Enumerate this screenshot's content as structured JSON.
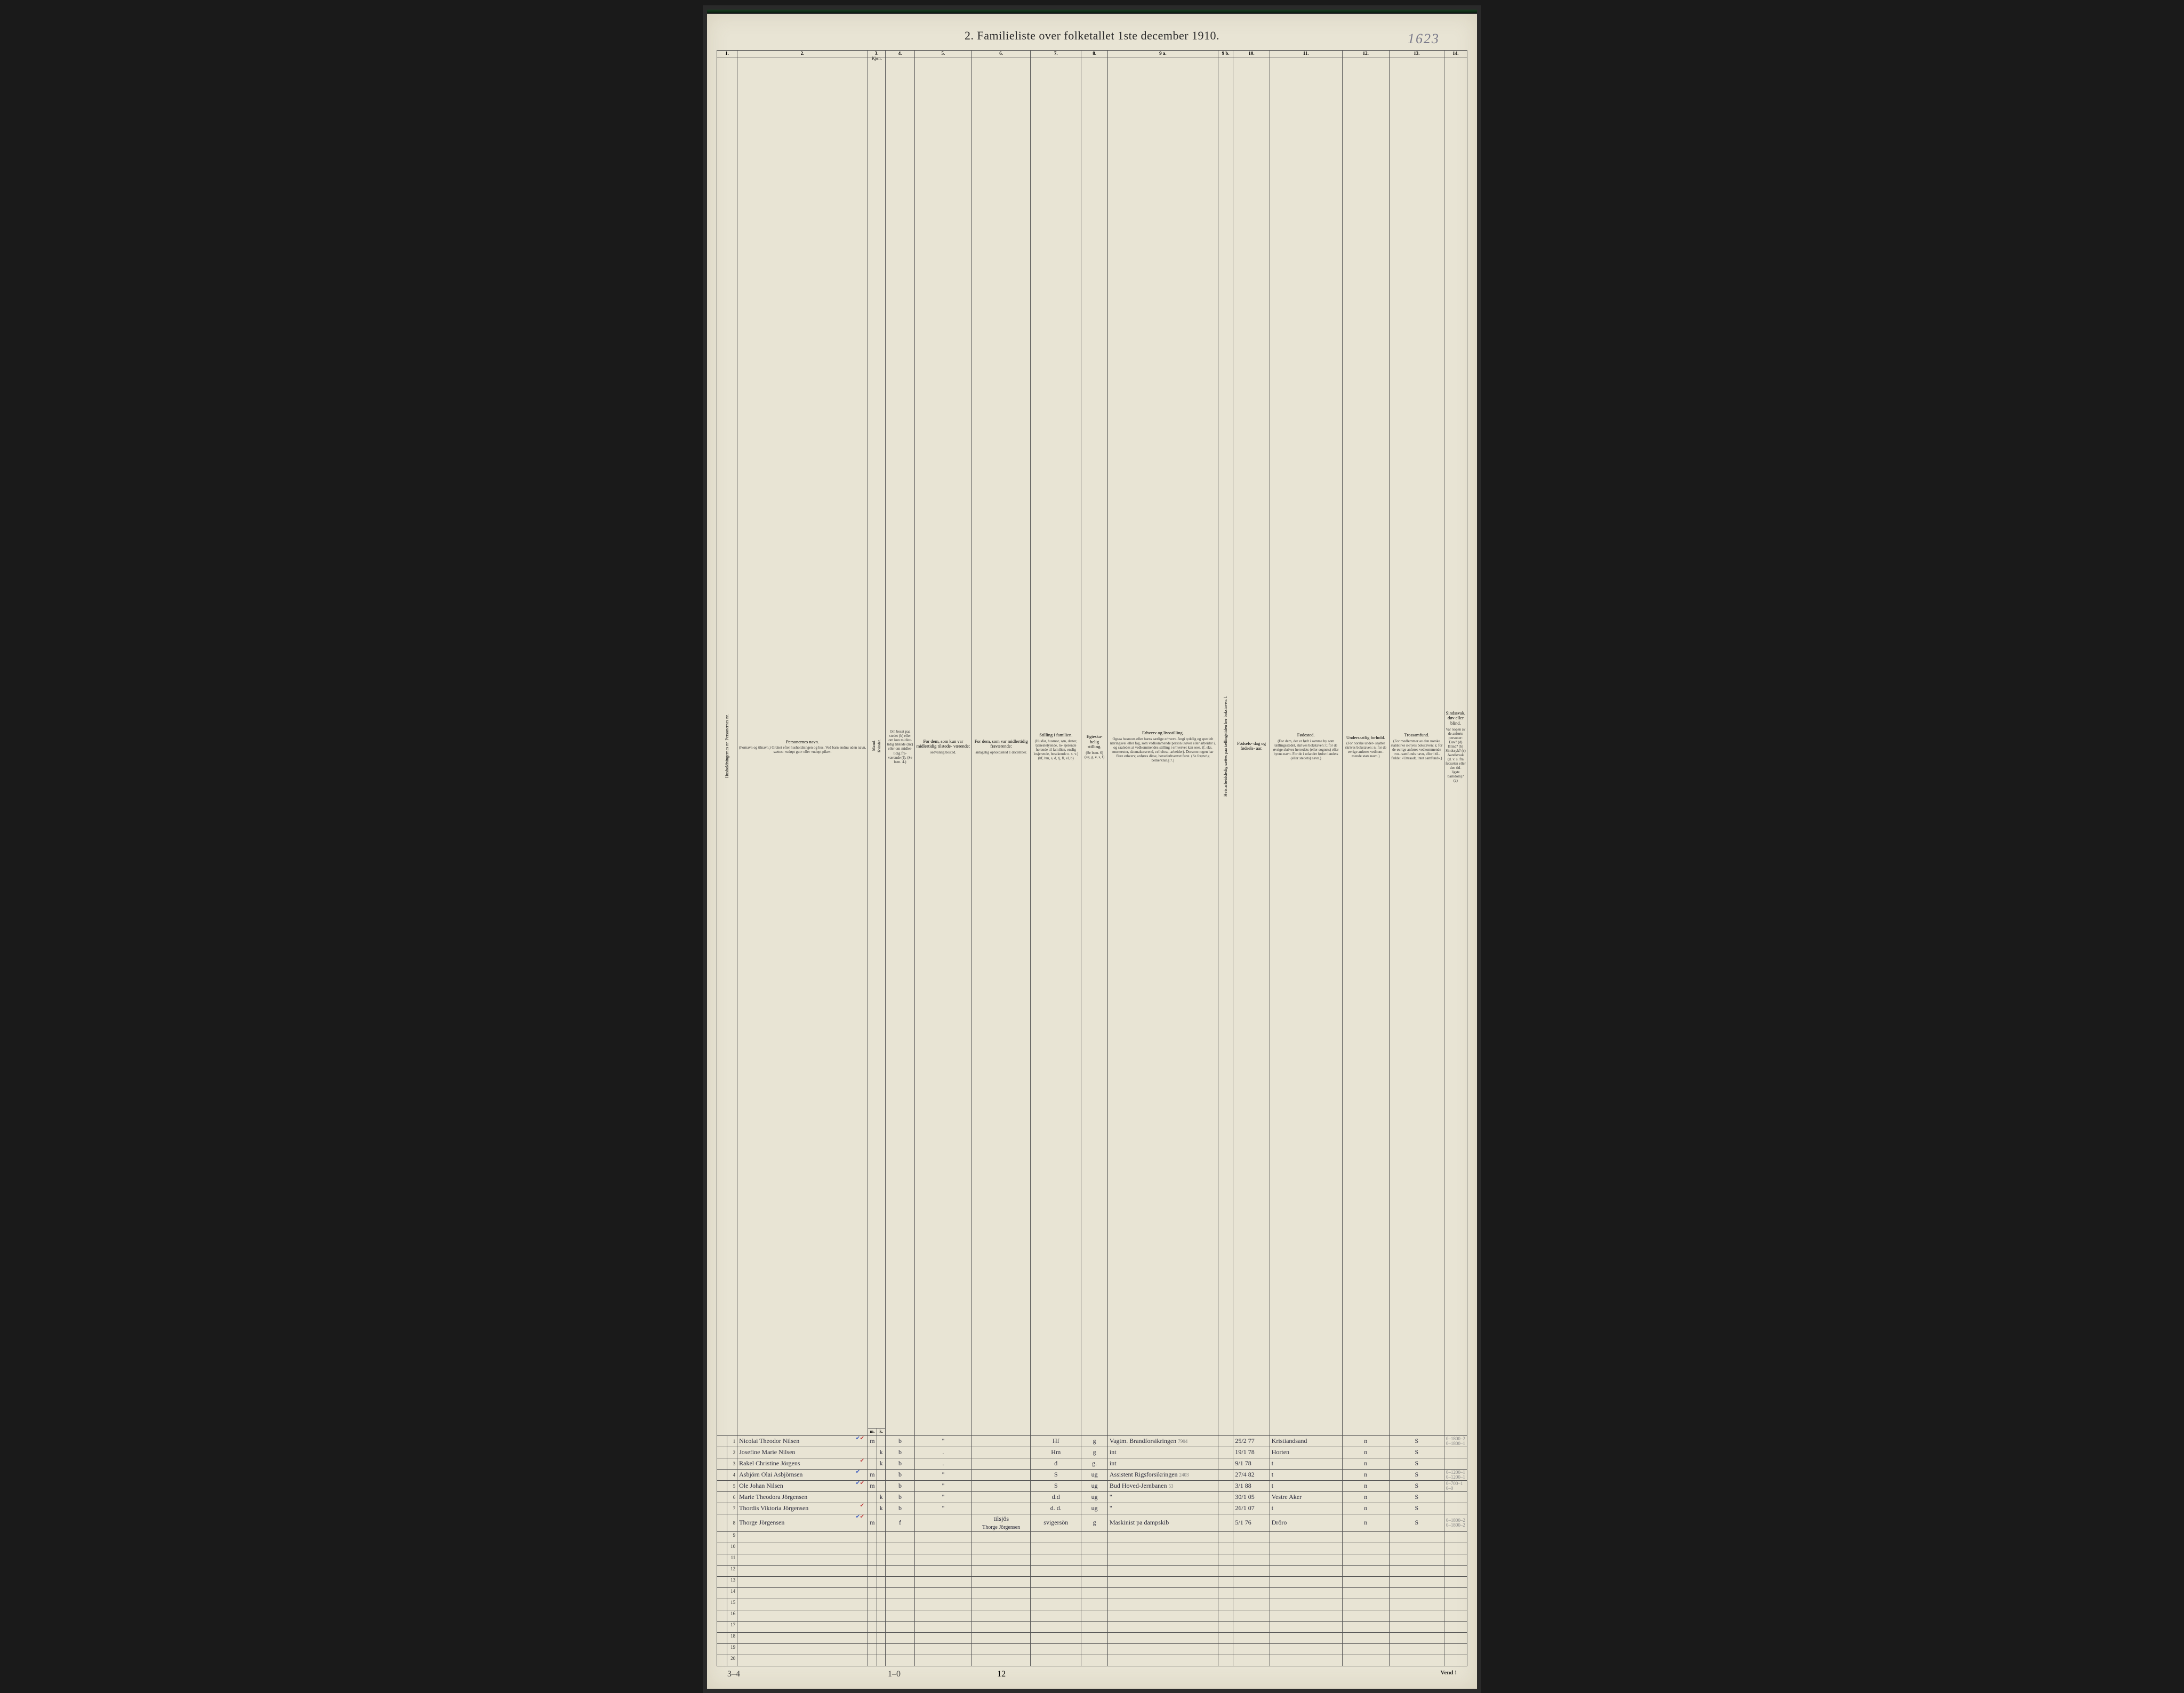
{
  "corner_note": "1623",
  "title": "2.  Familieliste over folketallet 1ste december 1910.",
  "column_numbers": [
    "1.",
    "2.",
    "3.",
    "4.",
    "5.",
    "6.",
    "7.",
    "8.",
    "9 a.",
    "9 b.",
    "10.",
    "11.",
    "12.",
    "13.",
    "14."
  ],
  "headers": {
    "c1": "Husholdningernes nr.\nPersonernes nr.",
    "c2_main": "Personernes navn.",
    "c2_sub": "(Fornavn og tilnavn.)\nOrdnet efter husholdningen og hus.\nVed barn endnu uden navn, sættes: «udøpt gut»\neller «udøpt pike».",
    "c3_main": "Kjøn.",
    "c3_sub_l": "Mænd.",
    "c3_sub_r": "Kvinder.",
    "c3_mk_m": "m.",
    "c3_mk_k": "k.",
    "c4_main": "Om bosat\npaa stedet\n(b) eller om\nkun midler-\ntidig tilstede\n(mt) eller\nom midler-\ntidig fra-\nværende (f).\n(Se bem. 4.)",
    "c5_main": "For dem, som kun var\nmidlertidig tilstede-\nværende:",
    "c5_sub": "sedvanlig bosted.",
    "c6_main": "For dem, som var\nmidlertidig\nfraværende:",
    "c6_sub": "antagelig opholdssted\n1 december.",
    "c7_main": "Stilling i familien.",
    "c7_sub": "(Husfar, husmor, søn,\ndatter, tjenestetyende, lo-\nsjerende hørende til familien,\nenslig losjerende, besøkende\no. s. v.)\n(hf, hm, s, d, tj, fl,\nel, b)",
    "c8_main": "Egteska-\nbelig\nstilling.",
    "c8_sub": "(Se bem. 6)\n(ug, g,\ne, s, f)",
    "c9a_main": "Erhverv og livsstilling.",
    "c9a_sub": "Ogsaa husmors eller barns særlige erhverv.\nAngi tydelig og specielt næringsvei eller fag, som\nvedkommende person utøver eller arbeider i,\nog saaledes at vedkommendes stilling i erhvervet kan\nsees. (f. eks. murmester, skomakersvend, cellulose-\narbeider). Dersom nogen har flere erhverv,\nanføres disse, hovederhvervet først.\n(Se forøvrig bemerkning 7.)",
    "c9b": "Hvis arbeidsledig sættes\npaa tællingstiden her bokstaven: l.",
    "c10_main": "Fødsels-\ndag\nog\nfødsels-\naar.",
    "c11_main": "Fødested.",
    "c11_sub": "(For dem, der er født\ni samme by som\ntællingsstedet,\nskrives bokstaven: t;\nfor de øvrige skrives\nherredets (eller sognets)\neller byens navn.\nFor de i utlandet fødte:\nlandets (eller stedets)\nnavn.)",
    "c12_main": "Undersaatlig\nforhold.",
    "c12_sub": "(For norske under-\nsaatter skrives\nbokstaven: n;\nfor de øvrige\nanføres vedkom-\nmende stats navn.)",
    "c13_main": "Trossamfund.",
    "c13_sub": "(For medlemmer av\nden norske statskirke\nskrives bokstaven: s;\nfor de øvrige anføres\nvedkommende tros-\nsamfunds navn, eller i til-\nfælde: «Uttraadt, intet\nsamfund».)",
    "c14_main": "Sindssvak, døv\neller blind.",
    "c14_sub": "Var nogen av de anførte\npersoner:\nDøv?       (d)\nBlind?     (b)\nSindssyk? (s)\nAandssvak (d. v. s. fra\nfødselen eller den tid-\nligste barndom)? (a)"
  },
  "column_widths_pct": [
    1.5,
    1.5,
    18,
    1.2,
    1.2,
    4.2,
    8,
    8,
    7,
    3.8,
    15,
    2.3,
    5,
    10,
    7,
    8,
    9
  ],
  "row_count": 20,
  "rows": [
    {
      "n": "1",
      "name": "Nicolai Theodor Nilsen",
      "kj": "m",
      "b": "b",
      "c5": "\"",
      "c6": "",
      "c7": "Hf",
      "c8": "g",
      "c9a": "Vagtm. Brandforsikringen",
      "c9a_note": "7904",
      "c10": "25/2 77",
      "c11": "Kristiandsand",
      "c12": "n",
      "c13": "S",
      "c14": "0–1800–2\n0–1800–1",
      "ticks": "rb"
    },
    {
      "n": "2",
      "name": "Josefine Marie Nilsen",
      "kj": "k",
      "b": "b",
      "c5": ".",
      "c6": "",
      "c7": "Hm",
      "c8": "g",
      "c9a": "int",
      "c10": "19/1 78",
      "c11": "Horten",
      "c12": "n",
      "c13": "S",
      "c14": "",
      "ticks": ""
    },
    {
      "n": "3",
      "name": "Rakel Christine Jörgens",
      "kj": "k",
      "b": "b",
      "c5": ".",
      "c6": "",
      "c7": "d",
      "c8": "g.",
      "c9a": "int",
      "c10": "9/1 78",
      "c11": "t",
      "c12": "n",
      "c13": "S",
      "c14": "",
      "ticks": "r"
    },
    {
      "n": "4",
      "name": "Asbjörn Olai Asbjörnsen",
      "kj": "m",
      "b": "b",
      "c5": "\"",
      "c6": "",
      "c7": "S",
      "c8": "ug",
      "c9a": "Assistent Rigsforsikringen",
      "c9a_note": "2403",
      "c10": "27/4 82",
      "c11": "t",
      "c12": "n",
      "c13": "S",
      "c14": "0–1200–1\n0–1200–1",
      "ticks": "b"
    },
    {
      "n": "5",
      "name": "Ole Johan Nilsen",
      "kj": "m",
      "b": "b",
      "c5": "\"",
      "c6": "",
      "c7": "S",
      "c8": "ug",
      "c9a": "Bud Hoved-Jernbanen",
      "c9a_note": "53",
      "c10": "3/1 88",
      "c11": "t",
      "c12": "n",
      "c13": "S",
      "c14": "0–700–1\n0–0",
      "ticks": "rb"
    },
    {
      "n": "6",
      "name": "Marie Theodora Jörgensen",
      "kj": "k",
      "b": "b",
      "c5": "\"",
      "c6": "",
      "c7": "d.d",
      "c8": "ug",
      "c9a": "\"",
      "c10": "30/1 05",
      "c11": "Vestre Aker",
      "c12": "n",
      "c13": "S",
      "c14": "",
      "ticks": ""
    },
    {
      "n": "7",
      "name": "Thordis Viktoria Jörgensen",
      "kj": "k",
      "b": "b",
      "c5": "\"",
      "c6": "",
      "c7": "d. d.",
      "c8": "ug",
      "c9a": "\"",
      "c10": "26/1 07",
      "c11": "t",
      "c12": "n",
      "c13": "S",
      "c14": "",
      "ticks": "r"
    },
    {
      "n": "8",
      "name": "Thorge Jörgensen",
      "kj": "m",
      "b": "f",
      "c5": "",
      "c6": "tilsjös",
      "c6_strike": "Thorge Jörgensen",
      "c7": "svigersön",
      "c8": "g",
      "c9a": "Maskinist pa dampskib",
      "c10": "5/1 76",
      "c11": "Dröro",
      "c12": "n",
      "c13": "S",
      "c14": "0–1800–2\n0–1800–2",
      "ticks": "rb",
      "pale": true
    }
  ],
  "bottom_left": "3–4",
  "bottom_mid_hand": "1–0",
  "page_foot_num": "12",
  "vend": "Vend !",
  "colors": {
    "paper": "#e8e4d4",
    "ink": "#2a2a2a",
    "border": "#555555",
    "hand_ink": "#2a2a3a",
    "pencil": "#888888",
    "tick_blue": "#3a5ac0",
    "tick_red": "#c03a3a"
  }
}
